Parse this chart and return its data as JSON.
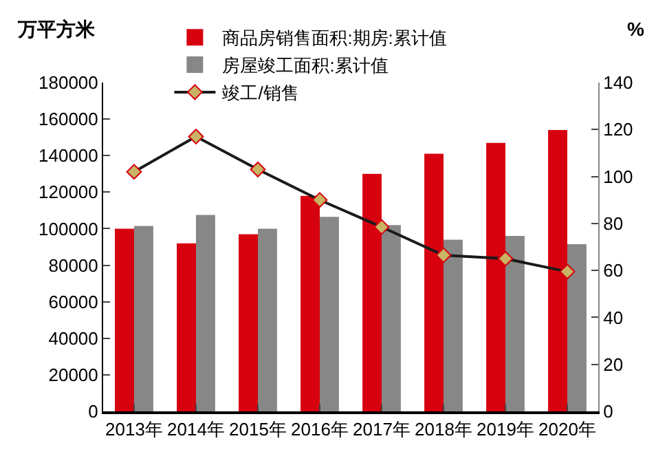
{
  "chart_data": {
    "type": "bar",
    "ylabel": "万平方米",
    "y2label": "%",
    "categories": [
      "2013年",
      "2014年",
      "2015年",
      "2016年",
      "2017年",
      "2018年",
      "2019年",
      "2020年"
    ],
    "series": [
      {
        "name": "商品房销售面积:期房:累计值",
        "color": "#d7000f",
        "values": [
          100000,
          92000,
          97000,
          118000,
          130000,
          141000,
          147000,
          154000
        ]
      },
      {
        "name": "房屋竣工面积:累计值",
        "color": "#878787",
        "values": [
          101500,
          107500,
          100000,
          106500,
          102000,
          94000,
          96000,
          91500
        ]
      },
      {
        "name": "竣工/销售",
        "type": "line",
        "axis": "y2",
        "color": "#1a1a1a",
        "marker": "diamond",
        "values": [
          102,
          117,
          103,
          90,
          78.5,
          66.5,
          65,
          59.5
        ]
      }
    ],
    "ylim": [
      0,
      180000
    ],
    "yticks": [
      0,
      20000,
      40000,
      60000,
      80000,
      100000,
      120000,
      140000,
      160000,
      180000
    ],
    "y2lim": [
      0,
      140
    ],
    "y2ticks": [
      0,
      20,
      40,
      60,
      80,
      100,
      120,
      140
    ],
    "grid": false,
    "legend": "top"
  }
}
